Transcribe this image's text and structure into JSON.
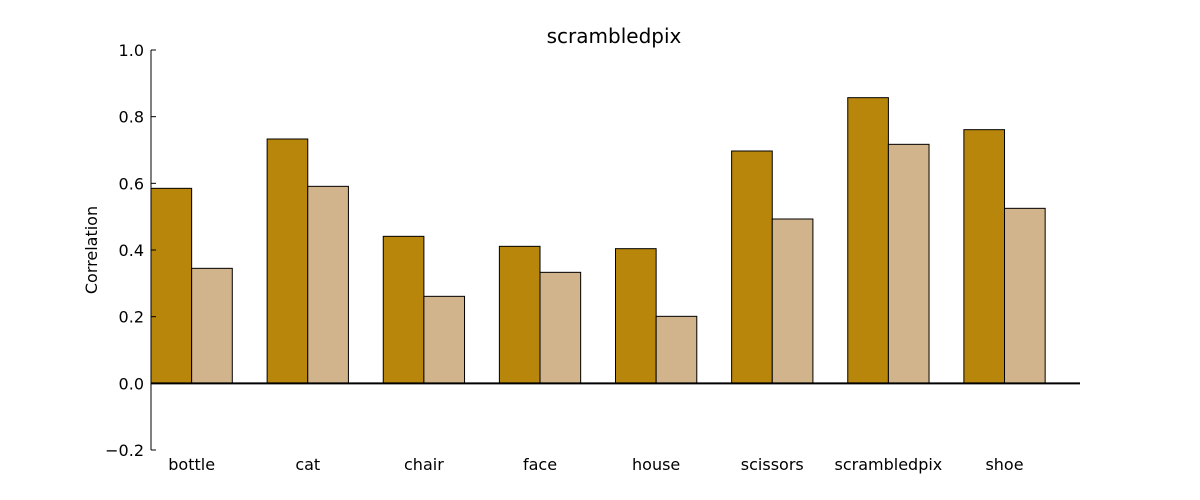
{
  "chart_data": {
    "type": "bar",
    "title": "scrambledpix",
    "xlabel": "",
    "ylabel": "Correlation",
    "categories": [
      "bottle",
      "cat",
      "chair",
      "face",
      "house",
      "scissors",
      "scrambledpix",
      "shoe"
    ],
    "series": [
      {
        "values": [
          0.585,
          0.733,
          0.441,
          0.411,
          0.404,
          0.697,
          0.857,
          0.761
        ],
        "color": "#b8860b"
      },
      {
        "values": [
          0.345,
          0.591,
          0.261,
          0.333,
          0.201,
          0.493,
          0.717,
          0.525
        ],
        "color": "#d2b48c"
      }
    ],
    "ylim": [
      -0.2,
      1.0
    ],
    "yticks": [
      "−0.2",
      "0.0",
      "0.2",
      "0.4",
      "0.6",
      "0.8",
      "1.0"
    ],
    "grid": false,
    "legend": "none"
  }
}
